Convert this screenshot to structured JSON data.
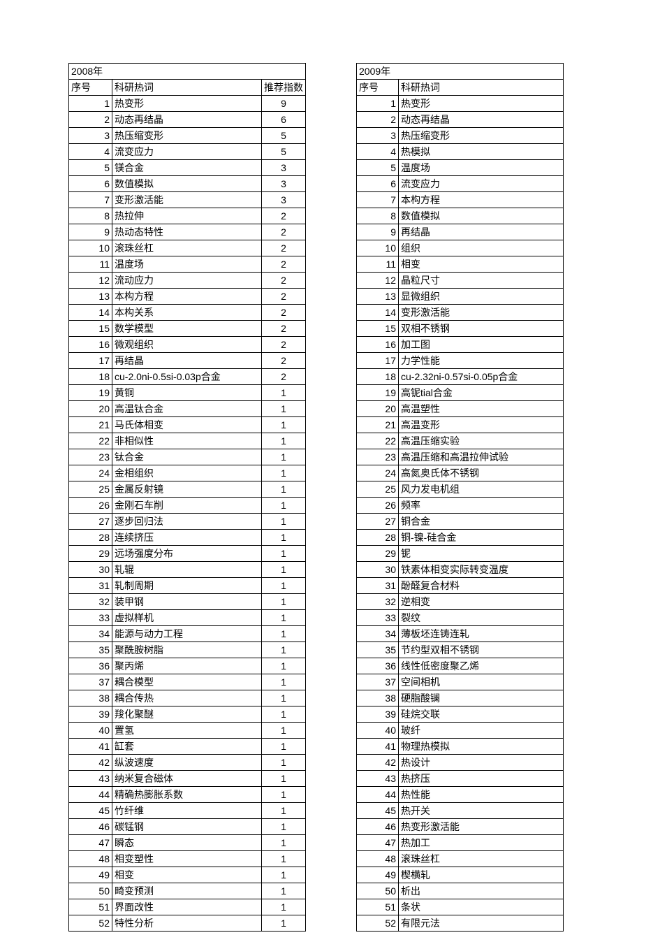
{
  "left": {
    "year": "2008年",
    "headers": {
      "seq": "序号",
      "term": "科研热词",
      "rec": "推荐指数"
    },
    "rows": [
      {
        "n": "1",
        "t": "热变形",
        "r": "9"
      },
      {
        "n": "2",
        "t": "动态再结晶",
        "r": "6"
      },
      {
        "n": "3",
        "t": "热压缩变形",
        "r": "5"
      },
      {
        "n": "4",
        "t": "流变应力",
        "r": "5"
      },
      {
        "n": "5",
        "t": "镁合金",
        "r": "3"
      },
      {
        "n": "6",
        "t": "数值模拟",
        "r": "3"
      },
      {
        "n": "7",
        "t": "变形激活能",
        "r": "3"
      },
      {
        "n": "8",
        "t": "热拉伸",
        "r": "2"
      },
      {
        "n": "9",
        "t": "热动态特性",
        "r": "2"
      },
      {
        "n": "10",
        "t": "滚珠丝杠",
        "r": "2"
      },
      {
        "n": "11",
        "t": "温度场",
        "r": "2"
      },
      {
        "n": "12",
        "t": "流动应力",
        "r": "2"
      },
      {
        "n": "13",
        "t": "本构方程",
        "r": "2"
      },
      {
        "n": "14",
        "t": "本构关系",
        "r": "2"
      },
      {
        "n": "15",
        "t": "数学模型",
        "r": "2"
      },
      {
        "n": "16",
        "t": "微观组织",
        "r": "2"
      },
      {
        "n": "17",
        "t": "再结晶",
        "r": "2"
      },
      {
        "n": "18",
        "t": "cu-2.0ni-0.5si-0.03p合金",
        "r": "2"
      },
      {
        "n": "19",
        "t": "黄铜",
        "r": "1"
      },
      {
        "n": "20",
        "t": "高温钛合金",
        "r": "1"
      },
      {
        "n": "21",
        "t": "马氏体相变",
        "r": "1"
      },
      {
        "n": "22",
        "t": "非相似性",
        "r": "1"
      },
      {
        "n": "23",
        "t": "钛合金",
        "r": "1"
      },
      {
        "n": "24",
        "t": "金相组织",
        "r": "1"
      },
      {
        "n": "25",
        "t": "金属反射镜",
        "r": "1"
      },
      {
        "n": "26",
        "t": "金刚石车削",
        "r": "1"
      },
      {
        "n": "27",
        "t": "逐步回归法",
        "r": "1"
      },
      {
        "n": "28",
        "t": "连续挤压",
        "r": "1"
      },
      {
        "n": "29",
        "t": "远场强度分布",
        "r": "1"
      },
      {
        "n": "30",
        "t": "轧辊",
        "r": "1"
      },
      {
        "n": "31",
        "t": "轧制周期",
        "r": "1"
      },
      {
        "n": "32",
        "t": "装甲钢",
        "r": "1"
      },
      {
        "n": "33",
        "t": "虚拟样机",
        "r": "1"
      },
      {
        "n": "34",
        "t": "能源与动力工程",
        "r": "1"
      },
      {
        "n": "35",
        "t": "聚酰胺树脂",
        "r": "1"
      },
      {
        "n": "36",
        "t": "聚丙烯",
        "r": "1"
      },
      {
        "n": "37",
        "t": "耦合模型",
        "r": "1"
      },
      {
        "n": "38",
        "t": "耦合传热",
        "r": "1"
      },
      {
        "n": "39",
        "t": "羧化聚醚",
        "r": "1"
      },
      {
        "n": "40",
        "t": "置氢",
        "r": "1"
      },
      {
        "n": "41",
        "t": "缸套",
        "r": "1"
      },
      {
        "n": "42",
        "t": "纵波速度",
        "r": "1"
      },
      {
        "n": "43",
        "t": "纳米复合磁体",
        "r": "1"
      },
      {
        "n": "44",
        "t": "精确热膨胀系数",
        "r": "1"
      },
      {
        "n": "45",
        "t": "竹纤维",
        "r": "1"
      },
      {
        "n": "46",
        "t": "碳锰钢",
        "r": "1"
      },
      {
        "n": "47",
        "t": "瞬态",
        "r": "1"
      },
      {
        "n": "48",
        "t": "相变塑性",
        "r": "1"
      },
      {
        "n": "49",
        "t": "相变",
        "r": "1"
      },
      {
        "n": "50",
        "t": "畸变预测",
        "r": "1"
      },
      {
        "n": "51",
        "t": "界面改性",
        "r": "1"
      },
      {
        "n": "52",
        "t": "特性分析",
        "r": "1"
      }
    ]
  },
  "right": {
    "year": "2009年",
    "headers": {
      "seq": "序号",
      "term": "科研热词"
    },
    "rows": [
      {
        "n": "1",
        "t": "热变形"
      },
      {
        "n": "2",
        "t": "动态再结晶"
      },
      {
        "n": "3",
        "t": "热压缩变形"
      },
      {
        "n": "4",
        "t": "热模拟"
      },
      {
        "n": "5",
        "t": "温度场"
      },
      {
        "n": "6",
        "t": "流变应力"
      },
      {
        "n": "7",
        "t": "本构方程"
      },
      {
        "n": "8",
        "t": "数值模拟"
      },
      {
        "n": "9",
        "t": "再结晶"
      },
      {
        "n": "10",
        "t": "组织"
      },
      {
        "n": "11",
        "t": "相变"
      },
      {
        "n": "12",
        "t": "晶粒尺寸"
      },
      {
        "n": "13",
        "t": "显微组织"
      },
      {
        "n": "14",
        "t": "变形激活能"
      },
      {
        "n": "15",
        "t": "双相不锈钢"
      },
      {
        "n": "16",
        "t": "加工图"
      },
      {
        "n": "17",
        "t": "力学性能"
      },
      {
        "n": "18",
        "t": "cu-2.32ni-0.57si-0.05p合金"
      },
      {
        "n": "19",
        "t": "高铌tial合金"
      },
      {
        "n": "20",
        "t": "高温塑性"
      },
      {
        "n": "21",
        "t": "高温变形"
      },
      {
        "n": "22",
        "t": "高温压缩实验"
      },
      {
        "n": "23",
        "t": "高温压缩和高温拉伸试验"
      },
      {
        "n": "24",
        "t": "高氮奥氏体不锈钢"
      },
      {
        "n": "25",
        "t": "风力发电机组"
      },
      {
        "n": "26",
        "t": "频率"
      },
      {
        "n": "27",
        "t": "铜合金"
      },
      {
        "n": "28",
        "t": "铜-镍-硅合金"
      },
      {
        "n": "29",
        "t": "铌"
      },
      {
        "n": "30",
        "t": "铁素体相变实际转变温度"
      },
      {
        "n": "31",
        "t": "酚醛复合材料"
      },
      {
        "n": "32",
        "t": "逆相变"
      },
      {
        "n": "33",
        "t": "裂纹"
      },
      {
        "n": "34",
        "t": "薄板坯连铸连轧"
      },
      {
        "n": "35",
        "t": "节约型双相不锈钢"
      },
      {
        "n": "36",
        "t": "线性低密度聚乙烯"
      },
      {
        "n": "37",
        "t": "空间相机"
      },
      {
        "n": "38",
        "t": "硬脂酸镧"
      },
      {
        "n": "39",
        "t": "硅烷交联"
      },
      {
        "n": "40",
        "t": "玻纤"
      },
      {
        "n": "41",
        "t": "物理热模拟"
      },
      {
        "n": "42",
        "t": "热设计"
      },
      {
        "n": "43",
        "t": "热挤压"
      },
      {
        "n": "44",
        "t": "热性能"
      },
      {
        "n": "45",
        "t": "热开关"
      },
      {
        "n": "46",
        "t": "热变形激活能"
      },
      {
        "n": "47",
        "t": "热加工"
      },
      {
        "n": "48",
        "t": "滚珠丝杠"
      },
      {
        "n": "49",
        "t": "楔横轧"
      },
      {
        "n": "50",
        "t": "析出"
      },
      {
        "n": "51",
        "t": "条状"
      },
      {
        "n": "52",
        "t": "有限元法"
      }
    ]
  }
}
